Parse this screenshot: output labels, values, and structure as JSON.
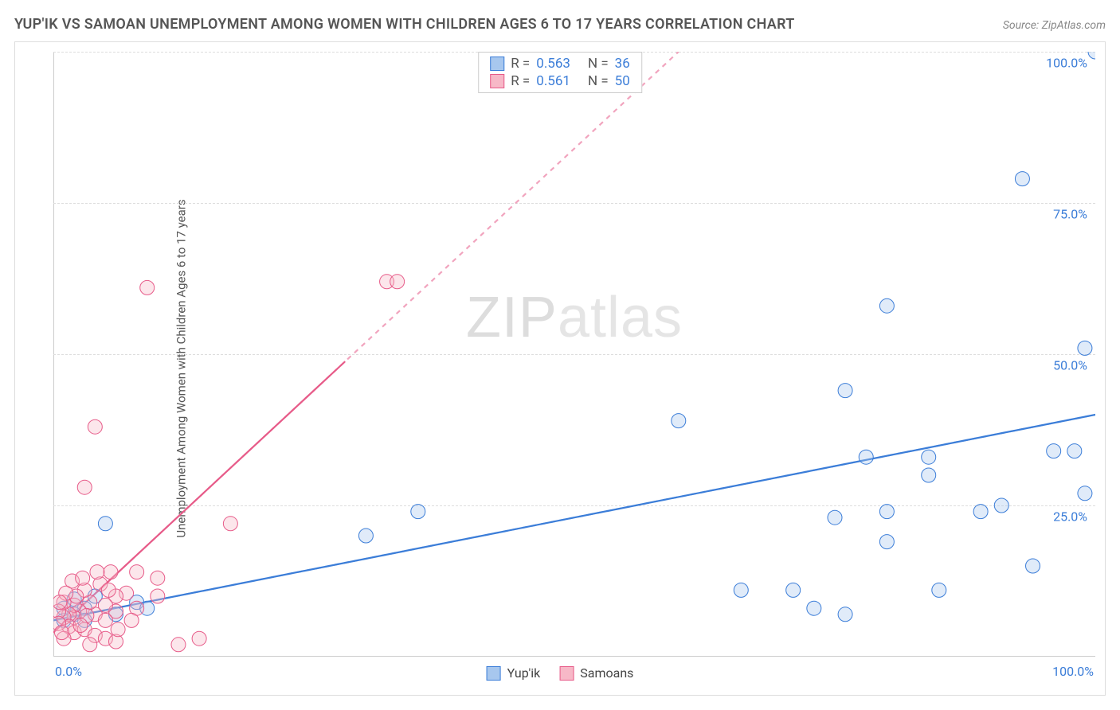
{
  "header": {
    "title": "YUP'IK VS SAMOAN UNEMPLOYMENT AMONG WOMEN WITH CHILDREN AGES 6 TO 17 YEARS CORRELATION CHART",
    "source": "Source: ZipAtlas.com"
  },
  "chart": {
    "type": "scatter",
    "y_axis_label": "Unemployment Among Women with Children Ages 6 to 17 years",
    "xlim": [
      0,
      100
    ],
    "ylim": [
      0,
      100
    ],
    "x_ticks": [
      {
        "value": 0,
        "label": "0.0%"
      },
      {
        "value": 100,
        "label": "100.0%"
      }
    ],
    "y_ticks": [
      {
        "value": 25,
        "label": "25.0%"
      },
      {
        "value": 50,
        "label": "50.0%"
      },
      {
        "value": 75,
        "label": "75.0%"
      },
      {
        "value": 100,
        "label": "100.0%"
      }
    ],
    "gridline_color": "#dddddd",
    "background_color": "#ffffff",
    "axis_color": "#cccccc",
    "tick_label_color": "#3b7dd8",
    "tick_label_fontsize": 16,
    "border_color": "#dddddd",
    "marker_radius": 9,
    "marker_stroke_width": 1,
    "marker_fill_opacity": 0.35,
    "trendline_width": 2.2,
    "trendline_dash_extrapolate": "6,6",
    "series": [
      {
        "name": "Yup'ik",
        "color_fill": "#a7c7ee",
        "color_stroke": "#3b7dd8",
        "R": 0.563,
        "N": 36,
        "trendline": {
          "x1": 0,
          "y1": 6,
          "x2": 100,
          "y2": 40,
          "solid_end_x": 100
        },
        "points": [
          [
            100,
            100
          ],
          [
            93,
            79
          ],
          [
            99,
            51
          ],
          [
            80,
            58
          ],
          [
            98,
            34
          ],
          [
            96,
            34
          ],
          [
            94,
            15
          ],
          [
            99,
            27
          ],
          [
            89,
            24
          ],
          [
            84,
            30
          ],
          [
            91,
            25
          ],
          [
            84,
            33
          ],
          [
            76,
            44
          ],
          [
            78,
            33
          ],
          [
            75,
            23
          ],
          [
            80,
            19
          ],
          [
            80,
            24
          ],
          [
            71,
            11
          ],
          [
            73,
            8
          ],
          [
            85,
            11
          ],
          [
            66,
            11
          ],
          [
            76,
            7
          ],
          [
            60,
            39
          ],
          [
            35,
            24
          ],
          [
            30,
            20
          ],
          [
            8,
            9
          ],
          [
            9,
            8
          ],
          [
            6,
            7
          ],
          [
            5,
            22
          ],
          [
            4,
            10
          ],
          [
            3,
            8
          ],
          [
            2,
            7
          ],
          [
            2,
            9.5
          ],
          [
            1,
            6
          ],
          [
            1,
            8
          ],
          [
            3,
            6
          ]
        ]
      },
      {
        "name": "Samoans",
        "color_fill": "#f7b8c7",
        "color_stroke": "#e75b89",
        "R": 0.561,
        "N": 50,
        "trendline": {
          "x1": 0,
          "y1": 4,
          "x2": 60,
          "y2": 100,
          "solid_end_x": 28
        },
        "points": [
          [
            32,
            62
          ],
          [
            33,
            62
          ],
          [
            9,
            61
          ],
          [
            4,
            38
          ],
          [
            3,
            28
          ],
          [
            17,
            22
          ],
          [
            14,
            3
          ],
          [
            12,
            2
          ],
          [
            10,
            13
          ],
          [
            8,
            14
          ],
          [
            10,
            10
          ],
          [
            7,
            10.5
          ],
          [
            6,
            10
          ],
          [
            8,
            8
          ],
          [
            6,
            7.5
          ],
          [
            5,
            8.5
          ],
          [
            4,
            7
          ],
          [
            5,
            6
          ],
          [
            3.5,
            9
          ],
          [
            3,
            11
          ],
          [
            2.5,
            7.5
          ],
          [
            2,
            6.5
          ],
          [
            2,
            8.5
          ],
          [
            1.5,
            7
          ],
          [
            1,
            9
          ],
          [
            1,
            6.5
          ],
          [
            1.5,
            5
          ],
          [
            0.5,
            7.5
          ],
          [
            0.5,
            5.5
          ],
          [
            2,
            4
          ],
          [
            3,
            4.5
          ],
          [
            4,
            3.5
          ],
          [
            5,
            3
          ],
          [
            6,
            2.5
          ],
          [
            3.5,
            2
          ],
          [
            1,
            3
          ],
          [
            0.8,
            4
          ],
          [
            2.2,
            10
          ],
          [
            4.5,
            12
          ],
          [
            5.5,
            14
          ],
          [
            1.8,
            12.5
          ],
          [
            7.5,
            6
          ],
          [
            4.2,
            14
          ],
          [
            2.8,
            13
          ],
          [
            3.2,
            6.8
          ],
          [
            6.2,
            4.5
          ],
          [
            5.3,
            11
          ],
          [
            1.2,
            10.5
          ],
          [
            0.6,
            9
          ],
          [
            2.6,
            5.2
          ]
        ]
      }
    ],
    "stats_box": {
      "R_label": "R =",
      "N_label": "N =",
      "text_color": "#555555",
      "value_color": "#3b7dd8",
      "border_color": "#cccccc",
      "fontsize": 17
    },
    "legend": {
      "items": [
        {
          "label": "Yup'ik",
          "swatch_fill": "#a7c7ee",
          "swatch_stroke": "#3b7dd8"
        },
        {
          "label": "Samoans",
          "swatch_fill": "#f7b8c7",
          "swatch_stroke": "#e75b89"
        }
      ],
      "fontsize": 16,
      "text_color": "#444444"
    },
    "watermark": {
      "text_bold": "ZIP",
      "text_thin": "atlas",
      "color": "#dddddd",
      "fontsize": 72
    }
  }
}
